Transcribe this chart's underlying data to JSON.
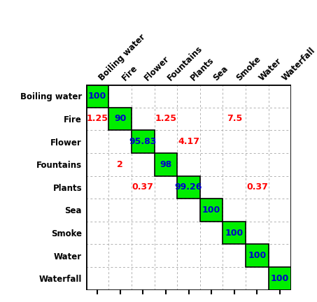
{
  "classes": [
    "Boiling water",
    "Fire",
    "Flower",
    "Fountains",
    "Plants",
    "Sea",
    "Smoke",
    "Water",
    "Waterfall"
  ],
  "matrix": [
    [
      100,
      0,
      0,
      0,
      0,
      0,
      0,
      0,
      0
    ],
    [
      1.25,
      90,
      0,
      1.25,
      0,
      0,
      7.5,
      0,
      0
    ],
    [
      0,
      0,
      95.83,
      0,
      4.17,
      0,
      0,
      0,
      0
    ],
    [
      0,
      2,
      0,
      98,
      0,
      0,
      0,
      0,
      0
    ],
    [
      0,
      0,
      0.37,
      0,
      99.26,
      0,
      0,
      0.37,
      0
    ],
    [
      0,
      0,
      0,
      0,
      0,
      100,
      0,
      0,
      0
    ],
    [
      0,
      0,
      0,
      0,
      0,
      0,
      100,
      0,
      0
    ],
    [
      0,
      0,
      0,
      0,
      0,
      0,
      0,
      100,
      0
    ],
    [
      0,
      0,
      0,
      0,
      0,
      0,
      0,
      0,
      100
    ]
  ],
  "diagonal_color": "#00ee00",
  "off_diagonal_text_color": "#ff0000",
  "diagonal_text_color": "#0000cc",
  "background_color": "#ffffff",
  "grid_color": "#b0b0b0",
  "border_color": "#000000",
  "figsize": [
    4.53,
    4.32
  ],
  "dpi": 100
}
